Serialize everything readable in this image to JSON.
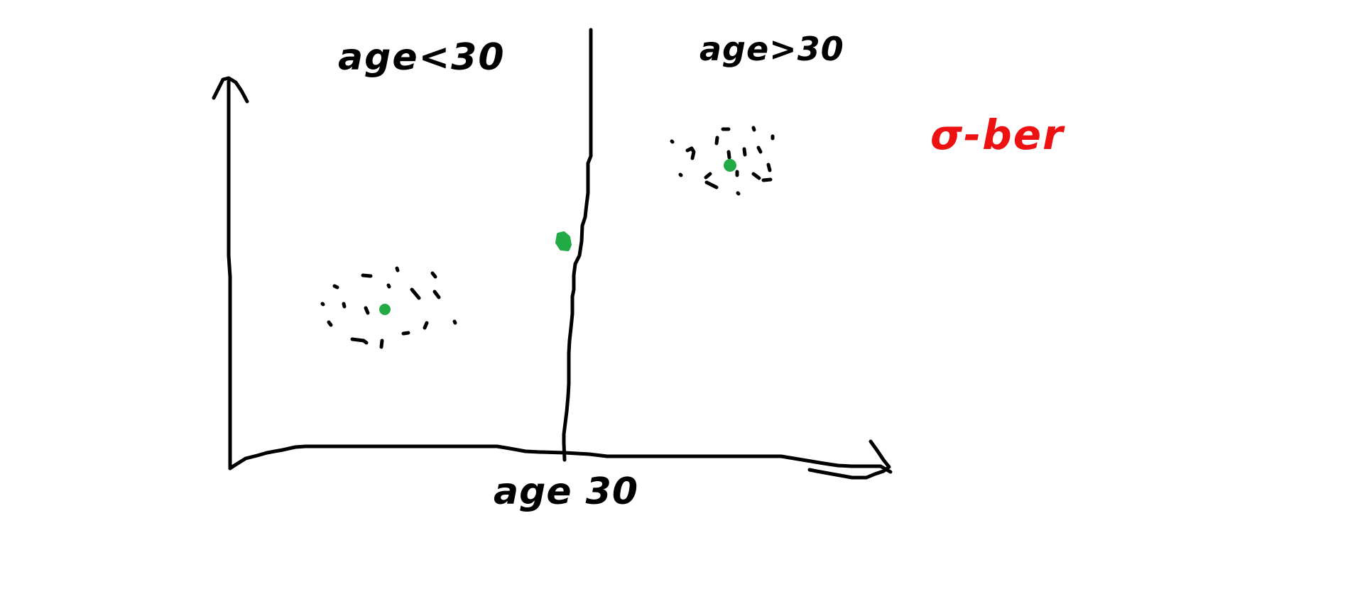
{
  "colors": {
    "ink": "#000000",
    "centroid": "#22aa44",
    "accent": "#ee1111",
    "background": "#ffffff"
  },
  "labels": {
    "left_region": "age<30",
    "right_region": "age>30",
    "split": "age 30",
    "method": "σ-ber"
  },
  "centroids": {
    "left_cluster": "green",
    "right_cluster": "green",
    "on_boundary": "green"
  }
}
